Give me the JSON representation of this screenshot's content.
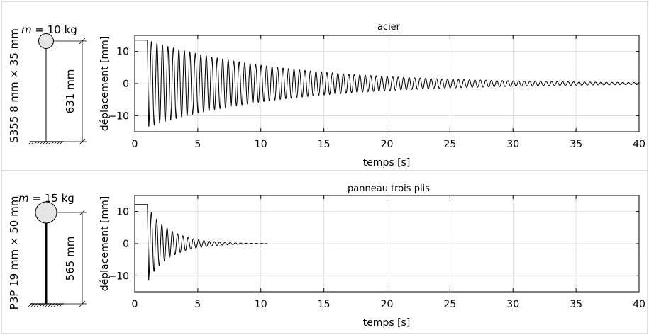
{
  "chart_data": [
    {
      "type": "line",
      "title": "acier",
      "xlabel": "temps [s]",
      "ylabel": "déplacement [mm]",
      "xlim": [
        0,
        40
      ],
      "ylim": [
        -15,
        15
      ],
      "xticks": [
        0,
        5,
        10,
        15,
        20,
        25,
        30,
        35,
        40
      ],
      "yticks": [
        -10,
        0,
        10
      ],
      "grid": true,
      "legend": "none",
      "series": [
        {
          "initial_displacement": 13.5,
          "release_time": 1.0,
          "peak_amplitude": 13.5,
          "frequency_hz": 2.3,
          "decay_rate": 0.095,
          "end_time": 40
        }
      ],
      "specimen": {
        "mass_label": "m",
        "mass_value": " = 10 kg",
        "section_label": "S355 8 mm × 35 mm",
        "height_label": "631 mm"
      }
    },
    {
      "type": "line",
      "title": "panneau trois plis",
      "xlabel": "temps [s]",
      "ylabel": "déplacement [mm]",
      "xlim": [
        0,
        40
      ],
      "ylim": [
        -15,
        15
      ],
      "xticks": [
        0,
        5,
        10,
        15,
        20,
        25,
        30,
        35,
        40
      ],
      "yticks": [
        -10,
        0,
        10
      ],
      "grid": true,
      "legend": "none",
      "series": [
        {
          "initial_displacement": 12.2,
          "release_time": 1.0,
          "peak_amplitude": 11.5,
          "frequency_hz": 2.4,
          "decay_rate": 0.55,
          "end_time": 10.5
        }
      ],
      "specimen": {
        "mass_label": "m",
        "mass_value": " = 15 kg",
        "section_label": "P3P 19 mm × 50 mm",
        "height_label": "565 mm"
      }
    }
  ]
}
